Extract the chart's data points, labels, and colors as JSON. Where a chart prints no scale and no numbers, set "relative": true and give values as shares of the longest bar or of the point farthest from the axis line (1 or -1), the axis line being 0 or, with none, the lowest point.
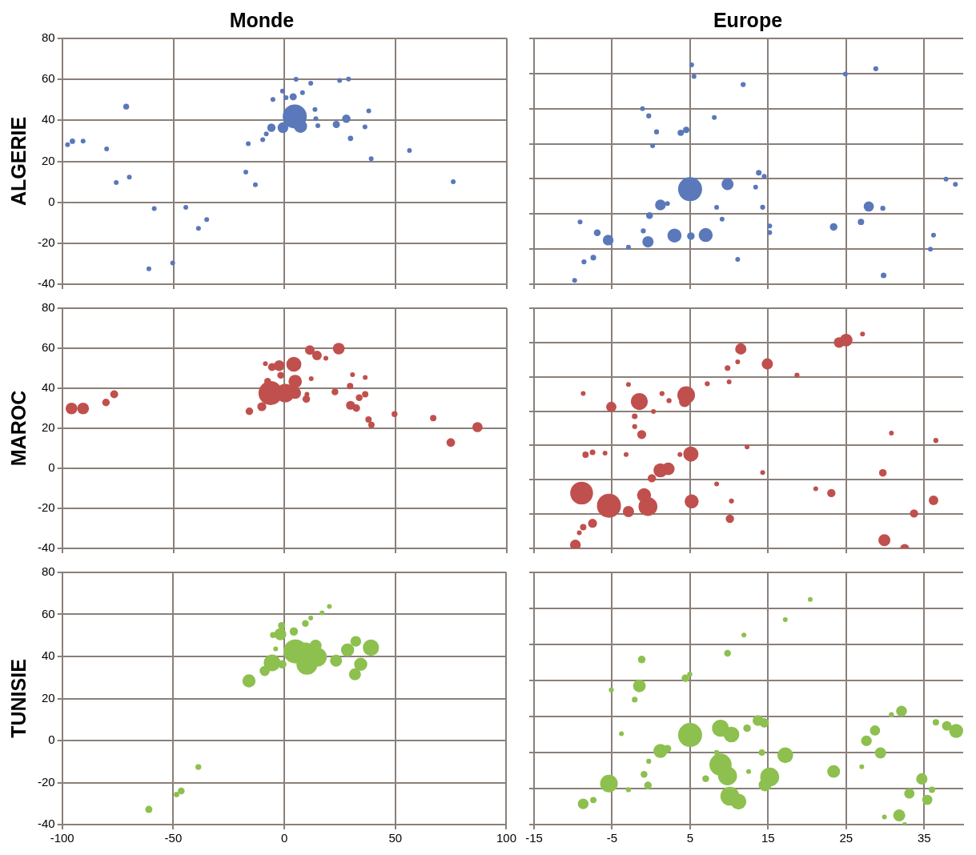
{
  "chart_data": [
    {
      "type": "bubble",
      "title": "Monde",
      "ylabel": "ALGERIE",
      "color": "#5a78ba",
      "grid": true,
      "tick_labels": "y",
      "xlim": [
        -100,
        100
      ],
      "xticks": [
        -100,
        -50,
        0,
        50,
        100
      ],
      "ylim": [
        -40,
        80
      ],
      "yticks": [
        -40,
        -20,
        0,
        20,
        40,
        60,
        80
      ],
      "x": [
        4.6,
        7.2,
        -0.7,
        -5.9,
        3.9,
        -0.9,
        0.7,
        5.2,
        11.8,
        28.8,
        24.8,
        13.7,
        14.1,
        15.0,
        23.3,
        27.8,
        29.7,
        36.2,
        37.9,
        39.0,
        56.2,
        75.9,
        -8.2,
        -9.8,
        -16.3,
        -17.4,
        -13.1,
        -71.2,
        -95.4,
        -97.6,
        -90.6,
        -80.0,
        -75.7,
        -69.8,
        -58.6,
        -44.4,
        -35.0,
        -38.7,
        -61.0,
        -50.3,
        8.1,
        -5.2
      ],
      "values": [
        41.9,
        37.1,
        36.4,
        36.4,
        51.5,
        54.3,
        51.1,
        60.1,
        58.1,
        60.2,
        59.5,
        45.3,
        40.8,
        37.4,
        38.0,
        40.8,
        31.2,
        36.8,
        44.6,
        21.3,
        25.3,
        10.0,
        33.4,
        30.6,
        28.6,
        14.7,
        8.6,
        46.7,
        29.8,
        28.1,
        29.9,
        26.1,
        9.6,
        12.3,
        -3.1,
        -2.5,
        -8.4,
        -12.7,
        -32.5,
        -29.6,
        53.5,
        50.2
      ],
      "sizes": [
        1,
        0.3,
        0.2,
        0.12,
        0.09,
        0.04,
        0.04,
        0.04,
        0.04,
        0.04,
        0.04,
        0.04,
        0.04,
        0.04,
        0.09,
        0.12,
        0.05,
        0.04,
        0.04,
        0.04,
        0.04,
        0.04,
        0.04,
        0.04,
        0.04,
        0.04,
        0.04,
        0.06,
        0.05,
        0.04,
        0.04,
        0.04,
        0.04,
        0.04,
        0.04,
        0.04,
        0.04,
        0.04,
        0.04,
        0.04,
        0.04,
        0.04
      ]
    },
    {
      "type": "bubble",
      "title": "Europe",
      "color": "#5a78ba",
      "grid": true,
      "tick_labels": false,
      "relative": true,
      "xlim": [
        -15,
        40
      ],
      "xticks": [
        -15,
        -5,
        5,
        15,
        25,
        35
      ],
      "x": [
        5.0,
        9.8,
        1.2,
        3.0,
        7.0,
        5.1,
        -0.4,
        -5.5,
        -6.9,
        -0.2,
        -1.0,
        2.1,
        -2.9,
        -7.4,
        -8.6,
        -9.8,
        -9.1,
        8.4,
        9.1,
        14.3,
        13.4,
        13.8,
        14.5,
        15.2,
        15.2,
        23.4,
        27.9,
        29.7,
        26.9,
        29.8,
        36.2,
        35.8,
        37.8,
        39.0,
        28.8,
        24.9,
        11.8,
        5.5,
        5.2,
        -1.1,
        -0.3,
        0.7,
        3.8,
        4.5,
        8.1,
        0.2,
        11.1
      ],
      "values": [
        0.433,
        0.456,
        0.361,
        0.222,
        0.224,
        0.219,
        0.193,
        0.201,
        0.234,
        0.313,
        0.243,
        0.368,
        0.169,
        0.121,
        0.102,
        0.017,
        0.284,
        0.35,
        0.296,
        0.351,
        0.442,
        0.508,
        0.492,
        0.265,
        0.235,
        0.261,
        0.354,
        0.346,
        0.284,
        0.04,
        0.223,
        0.16,
        0.479,
        0.455,
        0.982,
        0.958,
        0.91,
        0.947,
        1,
        0.8,
        0.767,
        0.694,
        0.69,
        0.703,
        0.76,
        0.631,
        0.113
      ],
      "sizes": [
        1,
        0.25,
        0.2,
        0.34,
        0.34,
        0.1,
        0.22,
        0.2,
        0.08,
        0.08,
        0.044,
        0.04,
        0.04,
        0.056,
        0.044,
        0.04,
        0.04,
        0.04,
        0.04,
        0.044,
        0.04,
        0.056,
        0.04,
        0.04,
        0.04,
        0.1,
        0.18,
        0.044,
        0.07,
        0.056,
        0.04,
        0.04,
        0.04,
        0.04,
        0.044,
        0.04,
        0.044,
        0.04,
        0.04,
        0.04,
        0.044,
        0.044,
        0.07,
        0.07,
        0.04,
        0.04,
        0.04
      ]
    },
    {
      "type": "bubble",
      "ylabel": "MAROC",
      "color": "#c0504d",
      "grid": true,
      "tick_labels": "y",
      "xlim": [
        -100,
        100
      ],
      "xticks": [
        -100,
        -50,
        0,
        50,
        100
      ],
      "ylim": [
        -40,
        80
      ],
      "yticks": [
        -40,
        -20,
        0,
        20,
        40,
        60,
        80
      ],
      "x": [
        -6.3,
        0.3,
        4.2,
        4.8,
        4.8,
        -2.4,
        24.4,
        11.4,
        14.6,
        -5.6,
        -1.7,
        -7.6,
        -10.2,
        -15.8,
        9.8,
        -95.8,
        -90.6,
        -80.3,
        -76.6,
        22.7,
        29.5,
        29.7,
        32.3,
        33.6,
        36.3,
        37.8,
        39.1,
        49.5,
        66.9,
        86.8,
        74.8,
        30.6,
        36.3,
        12.0,
        18.6,
        -8.6,
        10.1
      ],
      "values": [
        37.6,
        37.6,
        52.0,
        43.4,
        37.6,
        51.3,
        59.8,
        59.1,
        56.4,
        50.6,
        46.5,
        43.5,
        30.8,
        28.5,
        34.6,
        29.9,
        29.9,
        32.9,
        37.0,
        38.2,
        41.1,
        31.5,
        30.1,
        35.3,
        37.0,
        24.4,
        21.7,
        27.1,
        25.1,
        20.6,
        12.9,
        46.8,
        45.4,
        44.8,
        55.0,
        52.3,
        37.0
      ],
      "sizes": [
        1,
        0.6,
        0.39,
        0.31,
        0.24,
        0.2,
        0.24,
        0.16,
        0.16,
        0.11,
        0.08,
        0.08,
        0.14,
        0.1,
        0.1,
        0.24,
        0.24,
        0.1,
        0.11,
        0.08,
        0.07,
        0.14,
        0.1,
        0.08,
        0.07,
        0.07,
        0.07,
        0.06,
        0.07,
        0.18,
        0.13,
        0.04,
        0.04,
        0.04,
        0.04,
        0.04,
        0.04
      ]
    },
    {
      "type": "bubble",
      "color": "#c0504d",
      "grid": true,
      "tick_labels": false,
      "relative": true,
      "xlim": [
        -15,
        40
      ],
      "xticks": [
        -15,
        -5,
        5,
        15,
        25,
        35
      ],
      "x": [
        -5.4,
        -8.9,
        -0.4,
        -0.9,
        -1.5,
        4.5,
        4.3,
        5.1,
        5.2,
        1.2,
        2.2,
        0.1,
        -2.9,
        -5.1,
        -1.2,
        -2.1,
        -2.1,
        -7.5,
        -8.4,
        -7.5,
        -8.7,
        -9.7,
        -9.2,
        -5.9,
        -3.2,
        3.7,
        -8.7,
        -2.9,
        1.4,
        2.3,
        0.3,
        7.2,
        9.8,
        10.0,
        11.1,
        11.5,
        14.9,
        18.7,
        24.1,
        25.0,
        27.1,
        12.3,
        14.3,
        8.4,
        10.3,
        10.1,
        21.1,
        23.1,
        29.7,
        30.8,
        36.5,
        36.2,
        33.7,
        29.9,
        32.5
      ],
      "values": [
        0.199,
        0.258,
        0.195,
        0.248,
        0.685,
        0.715,
        0.685,
        0.44,
        0.219,
        0.364,
        0.371,
        0.327,
        0.172,
        0.66,
        0.531,
        0.616,
        0.568,
        0.448,
        0.437,
        0.117,
        0.099,
        0.016,
        0.073,
        0.444,
        0.438,
        0.438,
        0.722,
        0.764,
        0.722,
        0.689,
        0.638,
        0.768,
        0.841,
        0.777,
        0.87,
        0.93,
        0.86,
        0.808,
        0.96,
        0.971,
        1,
        0.473,
        0.354,
        0.301,
        0.221,
        0.138,
        0.278,
        0.258,
        0.352,
        0.538,
        0.503,
        0.224,
        0.163,
        0.038,
        0
      ],
      "sizes": [
        1,
        0.9,
        0.62,
        0.34,
        0.5,
        0.54,
        0.22,
        0.4,
        0.34,
        0.34,
        0.28,
        0.12,
        0.22,
        0.18,
        0.14,
        0.056,
        0.044,
        0.056,
        0.07,
        0.14,
        0.07,
        0.2,
        0.04,
        0.04,
        0.04,
        0.04,
        0.04,
        0.04,
        0.044,
        0.044,
        0.04,
        0.044,
        0.056,
        0.04,
        0.04,
        0.22,
        0.22,
        0.044,
        0.2,
        0.28,
        0.04,
        0.04,
        0.04,
        0.04,
        0.044,
        0.12,
        0.04,
        0.12,
        0.1,
        0.04,
        0.044,
        0.16,
        0.12,
        0.25,
        0.14
      ]
    },
    {
      "type": "bubble",
      "ylabel": "TUNISIE",
      "color": "#8dc04f",
      "grid": true,
      "xlim": [
        -100,
        100
      ],
      "xticks": [
        -100,
        -50,
        0,
        50,
        100
      ],
      "ylim": [
        -40,
        80
      ],
      "yticks": [
        -40,
        -20,
        0,
        20,
        40,
        60,
        80
      ],
      "x": [
        5.0,
        10.2,
        14.8,
        9.5,
        14.1,
        -5.5,
        -8.8,
        -0.9,
        -15.9,
        -1.8,
        -1.2,
        -5.1,
        4.3,
        9.5,
        11.9,
        17.0,
        20.3,
        -3.9,
        23.3,
        28.5,
        32.2,
        39.0,
        34.4,
        31.8,
        -61.0,
        -48.5,
        -46.4,
        -38.7
      ],
      "values": [
        42.4,
        36.3,
        39.7,
        42.4,
        45.1,
        37.0,
        33.1,
        36.3,
        28.4,
        50.6,
        54.7,
        50.2,
        51.9,
        55.7,
        58.3,
        60.8,
        63.8,
        43.6,
        38.0,
        43.1,
        47.2,
        44.2,
        36.3,
        31.5,
        -32.8,
        -25.7,
        -24.0,
        -12.6
      ],
      "sizes": [
        1,
        0.77,
        0.64,
        0.56,
        0.25,
        0.49,
        0.18,
        0.12,
        0.3,
        0.25,
        0.09,
        0.06,
        0.12,
        0.08,
        0.04,
        0.04,
        0.04,
        0.04,
        0.25,
        0.3,
        0.2,
        0.46,
        0.3,
        0.25,
        0.09,
        0.05,
        0.08,
        0.06
      ]
    },
    {
      "type": "bubble",
      "color": "#8dc04f",
      "grid": true,
      "tick_labels": "x",
      "relative": true,
      "xlim": [
        -15,
        40
      ],
      "xticks": [
        -15,
        -5,
        5,
        15,
        25,
        35
      ],
      "x": [
        5.0,
        8.9,
        9.8,
        10.1,
        11.2,
        8.9,
        10.3,
        15.2,
        14.6,
        17.2,
        1.2,
        2.1,
        -5.4,
        -8.7,
        -7.4,
        -1.5,
        -2.1,
        -1.2,
        -5.1,
        4.4,
        4.96,
        9.8,
        11.9,
        17.2,
        20.4,
        13.7,
        14.5,
        12.3,
        14.2,
        8.4,
        7.0,
        -0.4,
        -0.9,
        -0.3,
        23.4,
        27.6,
        28.7,
        29.4,
        32.1,
        30.8,
        31.8,
        33.1,
        34.7,
        35.4,
        36.0,
        37.9,
        39.1,
        36.5,
        29.9,
        27.0,
        12.5,
        -3.8,
        -2.9,
        32.5
      ],
      "values": [
        0.398,
        0.266,
        0.216,
        0.126,
        0.102,
        0.428,
        0.4,
        0.211,
        0.176,
        0.308,
        0.327,
        0.337,
        0.182,
        0.092,
        0.109,
        0.616,
        0.555,
        0.733,
        0.598,
        0.65,
        0.668,
        0.761,
        0.842,
        0.91,
        1,
        0.462,
        0.452,
        0.428,
        0.32,
        0.32,
        0.204,
        0.174,
        0.223,
        0.281,
        0.236,
        0.372,
        0.418,
        0.318,
        0.504,
        0.488,
        0.041,
        0.138,
        0.203,
        0.11,
        0.155,
        0.438,
        0.416,
        0.454,
        0.034,
        0.257,
        0.236,
        0.404,
        0.155,
        0
      ],
      "sizes": [
        1,
        0.85,
        0.62,
        0.62,
        0.43,
        0.5,
        0.43,
        0.62,
        0.28,
        0.43,
        0.34,
        0.1,
        0.54,
        0.2,
        0.07,
        0.28,
        0.056,
        0.1,
        0.044,
        0.1,
        0.044,
        0.08,
        0.04,
        0.04,
        0.04,
        0.2,
        0.16,
        0.1,
        0.07,
        0.044,
        0.08,
        0.1,
        0.08,
        0.044,
        0.28,
        0.2,
        0.18,
        0.22,
        0.2,
        0.044,
        0.25,
        0.18,
        0.22,
        0.18,
        0.07,
        0.16,
        0.34,
        0.07,
        0.04,
        0.04,
        0.04,
        0.04,
        0.044,
        0.04
      ]
    }
  ]
}
